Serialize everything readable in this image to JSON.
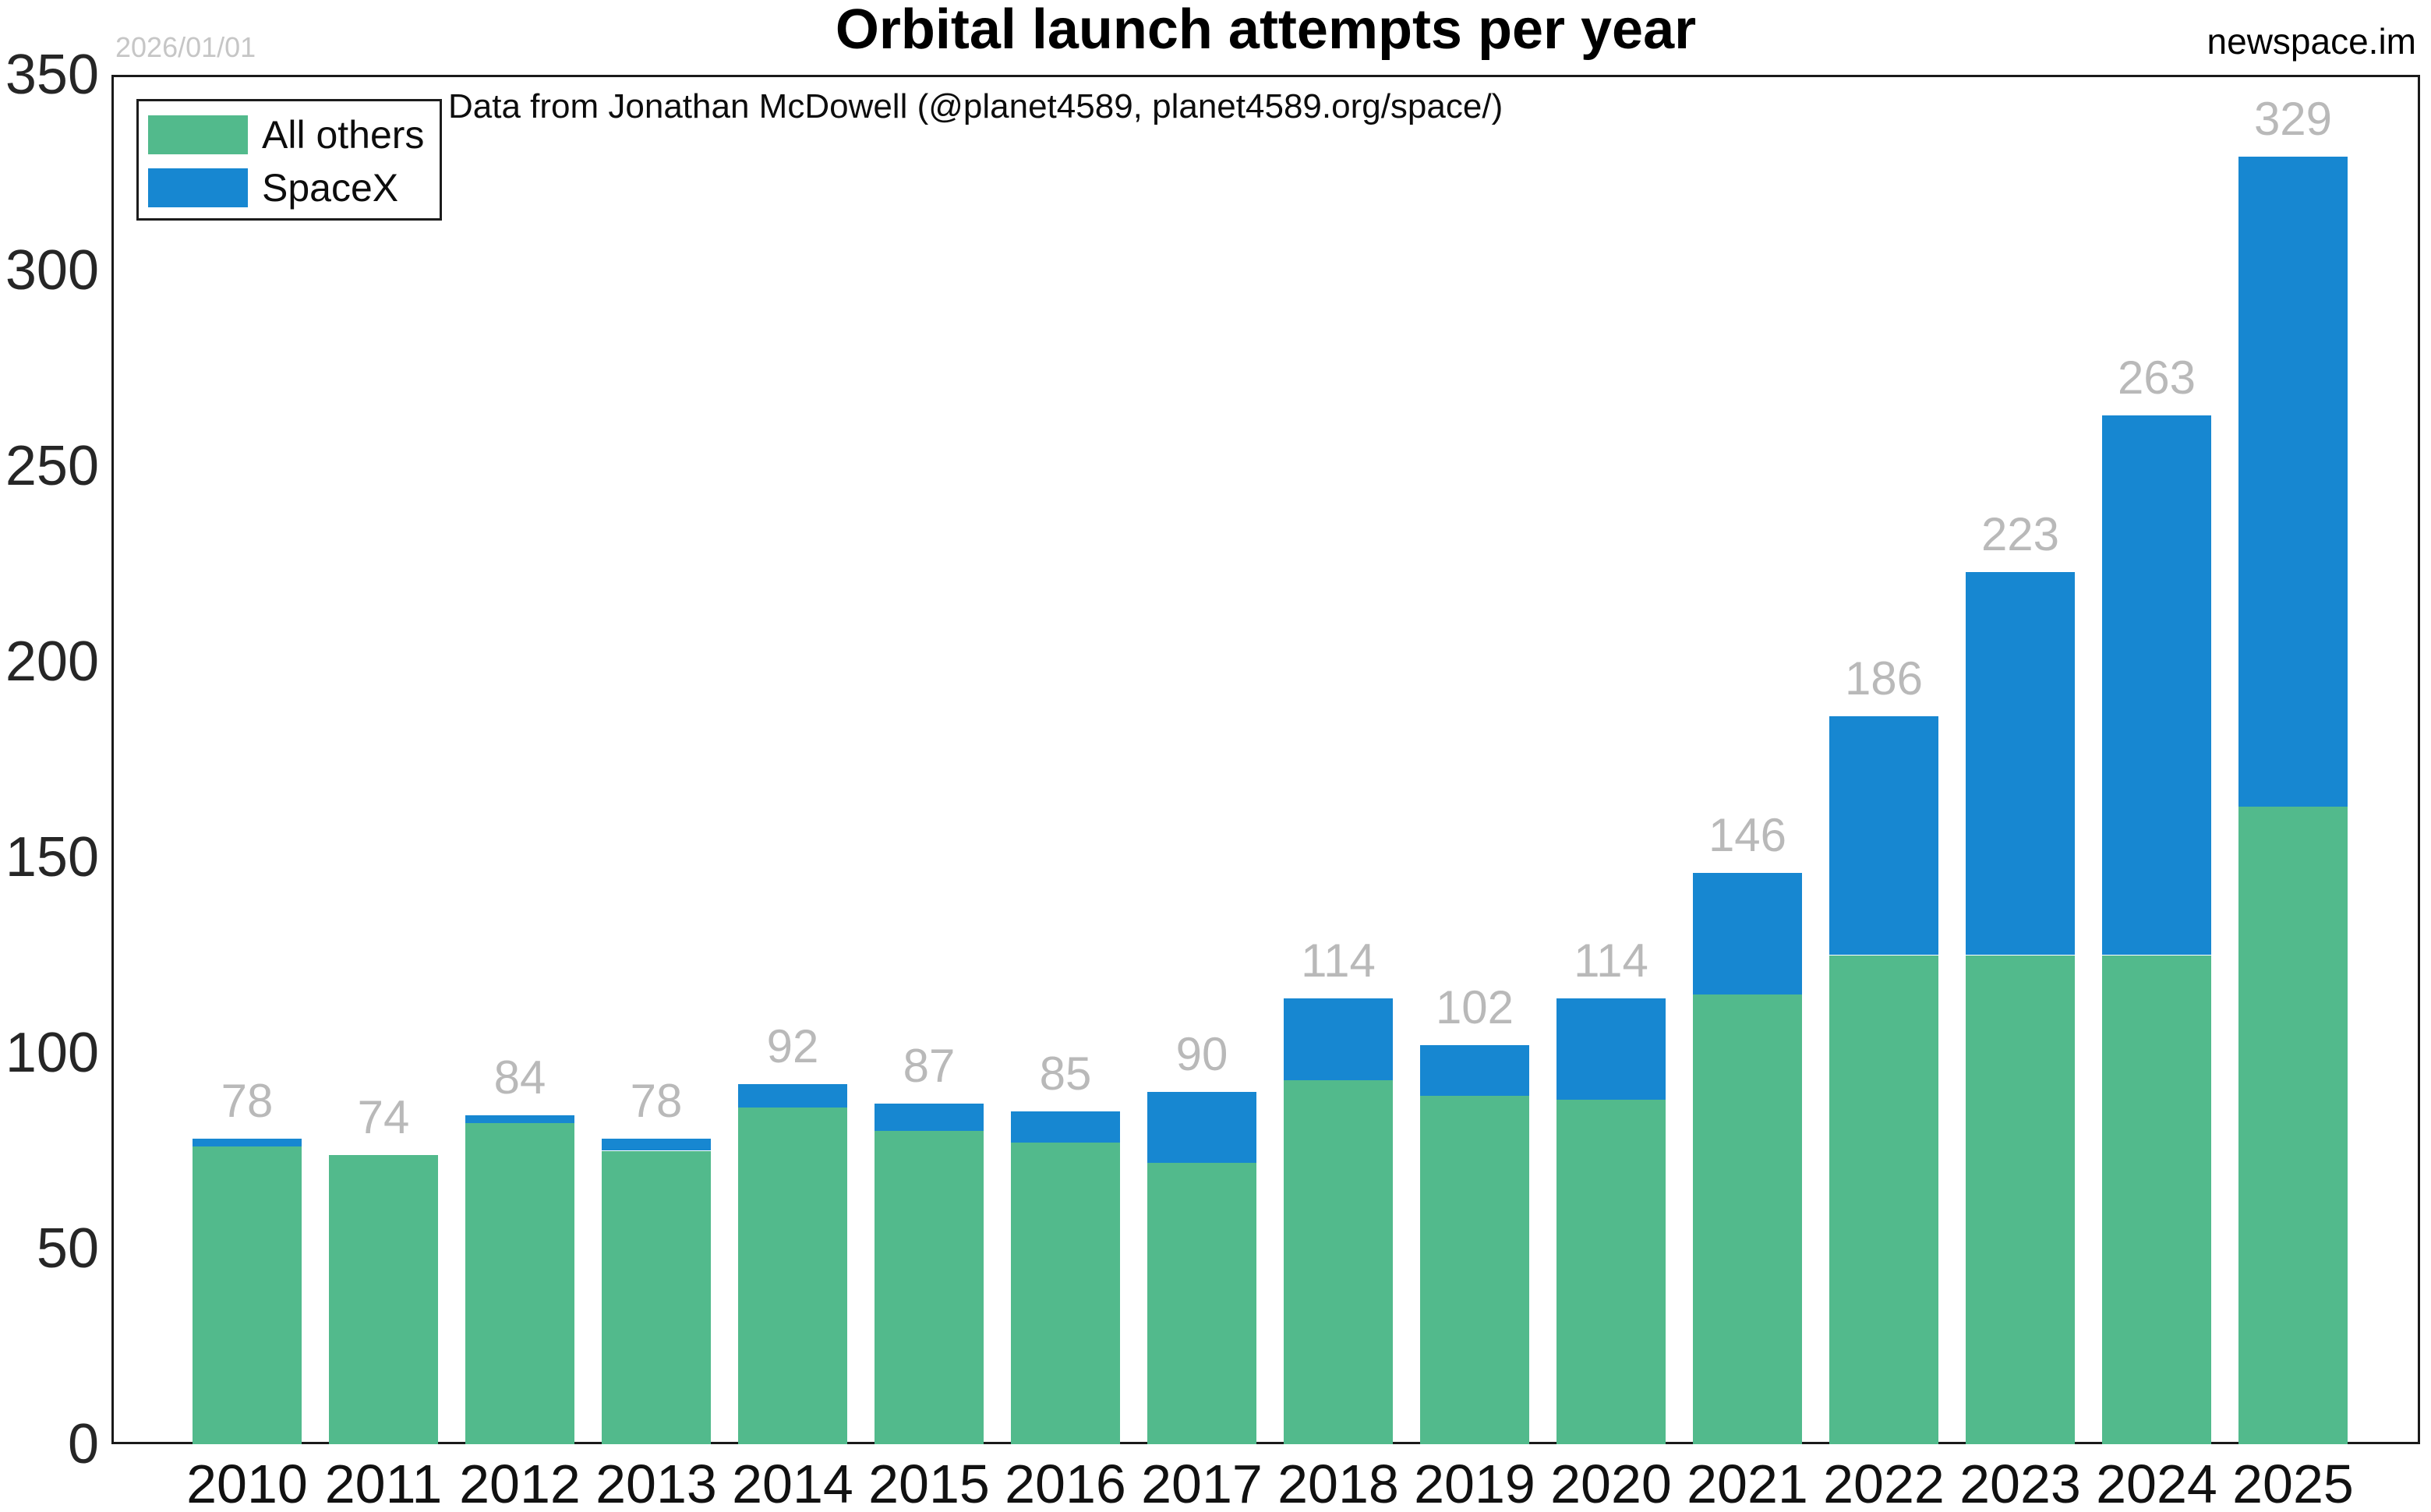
{
  "title": "Orbital launch attempts per year",
  "subtitle": "Data from Jonathan McDowell (@planet4589, planet4589.org/space/)",
  "watermark": "newspace.im",
  "date_note": "2026/01/01",
  "colors": {
    "all_others": "#52BA8C",
    "spacex": "#1787D1",
    "value_label": "#b9b9b9",
    "axis_frame": "#1a1a1a"
  },
  "legend": {
    "items": [
      {
        "label": "All others",
        "color": "#52BA8C"
      },
      {
        "label": "SpaceX",
        "color": "#1787D1"
      }
    ]
  },
  "chart_data": {
    "type": "bar",
    "stacked": true,
    "title": "Orbital launch attempts per year",
    "xlabel": "",
    "ylabel": "",
    "categories": [
      "2010",
      "2011",
      "2012",
      "2013",
      "2014",
      "2015",
      "2016",
      "2017",
      "2018",
      "2019",
      "2020",
      "2021",
      "2022",
      "2023",
      "2024",
      "2025"
    ],
    "series": [
      {
        "name": "All others",
        "color": "#52BA8C",
        "values": [
          76,
          74,
          82,
          75,
          86,
          80,
          77,
          72,
          93,
          89,
          88,
          115,
          125,
          125,
          125,
          163
        ]
      },
      {
        "name": "SpaceX",
        "color": "#1787D1",
        "values": [
          2,
          0,
          2,
          3,
          6,
          7,
          8,
          18,
          21,
          13,
          26,
          31,
          61,
          98,
          138,
          166
        ]
      }
    ],
    "totals": [
      78,
      74,
      84,
      78,
      92,
      87,
      85,
      90,
      114,
      102,
      114,
      146,
      186,
      223,
      263,
      329
    ],
    "ylim": [
      0,
      350
    ],
    "yticks": [
      0,
      50,
      100,
      150,
      200,
      250,
      300,
      350
    ],
    "grid": false,
    "legend_position": "upper left"
  }
}
